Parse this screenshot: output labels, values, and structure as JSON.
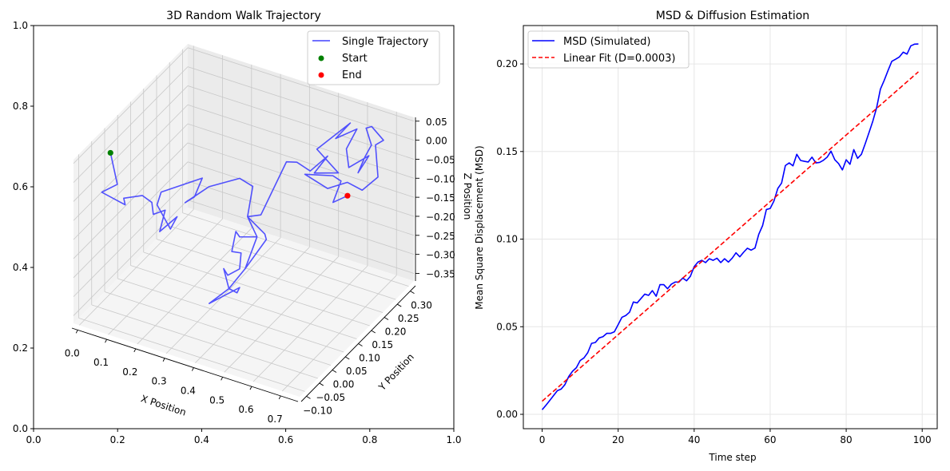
{
  "chart_data": [
    {
      "type": "line3d",
      "title": "3D Random Walk Trajectory",
      "xlabel": "X Position",
      "ylabel": "Y Position",
      "zlabel": "Z Position",
      "xlim": [
        -0.02,
        0.76
      ],
      "ylim": [
        -0.12,
        0.32
      ],
      "zlim": [
        -0.37,
        0.06
      ],
      "xticks": [
        "0.0",
        "0.1",
        "0.2",
        "0.3",
        "0.4",
        "0.5",
        "0.6",
        "0.7"
      ],
      "yticks": [
        "−0.10",
        "−0.05",
        "0.00",
        "0.05",
        "0.10",
        "0.15",
        "0.20",
        "0.25",
        "0.30"
      ],
      "zticks": [
        "−0.35",
        "−0.30",
        "−0.25",
        "−0.20",
        "−0.15",
        "−0.10",
        "−0.05",
        "0.00",
        "0.05"
      ],
      "outer_axes": {
        "xlim": [
          0,
          1
        ],
        "ylim": [
          0,
          1
        ],
        "xticks": [
          "0.0",
          "0.2",
          "0.4",
          "0.6",
          "0.8",
          "1.0"
        ],
        "yticks": [
          "0.0",
          "0.2",
          "0.4",
          "0.6",
          "0.8",
          "1.0"
        ]
      },
      "grid": true,
      "legend_position": "top-right",
      "series": [
        {
          "name": "Single Trajectory",
          "color": "#4040ff",
          "points": [
            [
              0,
              0,
              0
            ],
            [
              0.013,
              0.012,
              -0.088
            ],
            [
              -0.041,
              0.012,
              -0.122
            ],
            [
              0.04,
              0.012,
              -0.135
            ],
            [
              0.035,
              0.012,
              -0.119
            ],
            [
              0.099,
              0.012,
              -0.096
            ],
            [
              0.132,
              0.012,
              -0.106
            ],
            [
              0.137,
              0.012,
              -0.136
            ],
            [
              0.178,
              0.012,
              -0.115
            ],
            [
              0.159,
              0.012,
              -0.176
            ],
            [
              0.219,
              0.012,
              -0.122
            ],
            [
              0.196,
              0.012,
              -0.16
            ],
            [
              0.15,
              0.012,
              -0.108
            ],
            [
              0.164,
              0.012,
              -0.071
            ],
            [
              0.306,
              0.012,
              0.001
            ],
            [
              0.279,
              0.012,
              -0.055
            ],
            [
              0.247,
              0.012,
              -0.078
            ],
            [
              0.329,
              0.012,
              -0.016
            ],
            [
              0.376,
              0.078,
              -0.028
            ],
            [
              0.421,
              0.078,
              -0.038
            ],
            [
              0.403,
              0.078,
              -0.122
            ],
            [
              0.443,
              0.1,
              -0.173
            ],
            [
              0.448,
              0.1,
              -0.186
            ],
            [
              0.375,
              0.1,
              -0.281
            ],
            [
              0.416,
              0.1,
              -0.187
            ],
            [
              0.356,
              0.1,
              -0.202
            ],
            [
              0.343,
              0.1,
              -0.191
            ],
            [
              0.329,
              0.1,
              -0.247
            ],
            [
              0.361,
              0.1,
              -0.243
            ],
            [
              0.356,
              0.1,
              -0.286
            ],
            [
              0.315,
              0.1,
              -0.313
            ],
            [
              0.301,
              0.1,
              -0.299
            ],
            [
              0.319,
              0.1,
              -0.347
            ],
            [
              0.251,
              0.1,
              -0.403
            ],
            [
              0.356,
              0.1,
              -0.335
            ],
            [
              0.347,
              0.1,
              -0.351
            ],
            [
              0.319,
              0.1,
              -0.347
            ],
            [
              0.375,
              0.1,
              -0.281
            ],
            [
              0.416,
              0.1,
              -0.187
            ],
            [
              0.403,
              0.078,
              -0.122
            ],
            [
              0.449,
              0.078,
              -0.106
            ],
            [
              0.478,
              0.144,
              -0.005
            ],
            [
              0.514,
              0.144,
              0.003
            ],
            [
              0.501,
              0.21,
              -0.069
            ],
            [
              0.561,
              0.21,
              -0.015
            ],
            [
              0.515,
              0.21,
              -0.071
            ],
            [
              0.598,
              0.21,
              -0.05
            ],
            [
              0.524,
              0.21,
              -0.006
            ],
            [
              0.58,
              0.276,
              0.031
            ],
            [
              0.569,
              0.232,
              0.018
            ],
            [
              0.603,
              0.276,
              0.021
            ],
            [
              0.606,
              0.232,
              0.0
            ],
            [
              0.634,
              0.21,
              -0.027
            ],
            [
              0.664,
              0.254,
              -0.019
            ],
            [
              0.666,
              0.21,
              -0.033
            ],
            [
              0.65,
              0.254,
              -0.026
            ],
            [
              0.653,
              0.276,
              -0.009
            ],
            [
              0.615,
              0.298,
              0.011
            ],
            [
              0.634,
              0.298,
              0.02
            ],
            [
              0.675,
              0.298,
              -0.006
            ],
            [
              0.667,
              0.276,
              -0.005
            ],
            [
              0.715,
              0.232,
              -0.047
            ],
            [
              0.7,
              0.188,
              -0.055
            ],
            [
              0.649,
              0.188,
              -0.047
            ],
            [
              0.6,
              0.166,
              -0.06
            ],
            [
              0.522,
              0.166,
              -0.042
            ],
            [
              0.599,
              0.188,
              -0.042
            ],
            [
              0.627,
              0.188,
              -0.049
            ],
            [
              0.619,
              0.166,
              -0.092
            ],
            [
              0.669,
              0.166,
              -0.062
            ]
          ]
        },
        {
          "name": "Start",
          "color": "#008000",
          "points": [
            [
              0,
              0,
              0
            ]
          ]
        },
        {
          "name": "End",
          "color": "#ff0000",
          "points": [
            [
              0.669,
              0.166,
              -0.062
            ]
          ]
        }
      ]
    },
    {
      "type": "line",
      "title": "MSD & Diffusion Estimation",
      "xlabel": "Time step",
      "ylabel": "Mean Square Displacement (MSD)",
      "xlim": [
        -4.95,
        103.95
      ],
      "ylim": [
        -0.0082,
        0.2219
      ],
      "xticks": [
        0,
        20,
        40,
        60,
        80,
        100
      ],
      "yticks": [
        0.0,
        0.05,
        0.1,
        0.15,
        0.2
      ],
      "ytick_labels": [
        "0.00",
        "0.05",
        "0.10",
        "0.15",
        "0.20"
      ],
      "grid": true,
      "legend_position": "top-left",
      "series": [
        {
          "name": "MSD (Simulated)",
          "color": "#0000ff",
          "style": "solid",
          "x_start": 0,
          "values": [
            0.0026,
            0.0052,
            0.0079,
            0.0107,
            0.0135,
            0.0144,
            0.017,
            0.0216,
            0.0246,
            0.0266,
            0.0307,
            0.0322,
            0.0352,
            0.0405,
            0.041,
            0.0436,
            0.0443,
            0.0462,
            0.0462,
            0.0471,
            0.0512,
            0.0554,
            0.0564,
            0.0583,
            0.0641,
            0.0636,
            0.0661,
            0.0686,
            0.0679,
            0.0706,
            0.0674,
            0.074,
            0.074,
            0.0717,
            0.0743,
            0.0755,
            0.0755,
            0.0778,
            0.0762,
            0.0788,
            0.0843,
            0.0869,
            0.0879,
            0.0866,
            0.0888,
            0.0879,
            0.0891,
            0.0866,
            0.0888,
            0.0869,
            0.0891,
            0.0922,
            0.0899,
            0.0925,
            0.0948,
            0.0937,
            0.0949,
            0.1028,
            0.1077,
            0.1169,
            0.1175,
            0.1218,
            0.1289,
            0.132,
            0.142,
            0.1435,
            0.1418,
            0.1484,
            0.1449,
            0.1444,
            0.144,
            0.1468,
            0.1435,
            0.1438,
            0.145,
            0.1468,
            0.1502,
            0.1453,
            0.1431,
            0.1395,
            0.1453,
            0.1427,
            0.1511,
            0.1461,
            0.1484,
            0.1544,
            0.1608,
            0.1673,
            0.1749,
            0.1856,
            0.1906,
            0.1962,
            0.2015,
            0.2027,
            0.204,
            0.2067,
            0.2056,
            0.2103,
            0.2113,
            0.2114
          ]
        },
        {
          "name": "Linear Fit (D=0.0003)",
          "color": "#ff0000",
          "style": "dashed",
          "x": [
            0,
            99
          ],
          "values": [
            0.0075,
            0.1955
          ]
        }
      ]
    }
  ]
}
